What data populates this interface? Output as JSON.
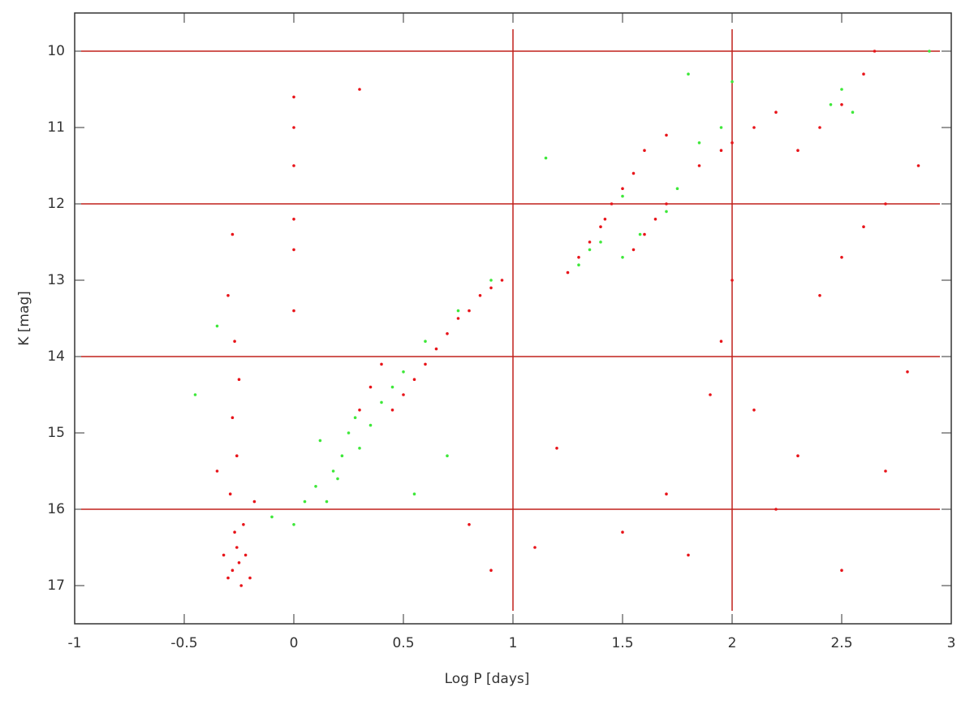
{
  "chart_data": {
    "type": "scatter",
    "x_label": "Log P [days]",
    "y_label": "K [mag]",
    "xlim": [
      -1,
      3
    ],
    "xticks": [
      -1,
      -0.5,
      0,
      0.5,
      1,
      1.5,
      2,
      2.5,
      3
    ],
    "ylim": [
      17.5,
      9.5
    ],
    "yticks": [
      10,
      11,
      12,
      13,
      14,
      15,
      16,
      17
    ],
    "hlines": [
      10,
      12,
      14,
      16
    ],
    "vlines": [
      1,
      2
    ],
    "line_color": "#c0201c",
    "series": [
      {
        "color": "#e8141a",
        "x": [
          -0.25,
          -0.28,
          -0.22,
          -0.3,
          -0.26,
          -0.2,
          -0.24,
          -0.32,
          -0.27,
          -0.23,
          -0.29,
          -0.26,
          -0.28,
          -0.25,
          -0.27,
          -0.3,
          -0.28,
          -0.35,
          -0.18,
          0,
          0,
          0,
          0,
          0,
          0,
          0.3,
          0.3,
          0.35,
          0.4,
          0.45,
          0.5,
          0.55,
          0.6,
          0.65,
          0.7,
          0.75,
          0.8,
          0.85,
          0.9,
          0.95,
          1.25,
          1.3,
          1.35,
          1.4,
          1.42,
          1.45,
          1.5,
          1.55,
          1.6,
          1.7,
          1.55,
          1.6,
          1.65,
          1.7,
          1.85,
          1.95,
          2.0,
          2.1,
          2.2,
          2.3,
          2.4,
          2.5,
          2.6,
          2.65,
          2.7,
          2.6,
          2.5,
          2.4,
          1.2,
          1.5,
          1.8,
          2.2,
          2.5,
          1.1,
          0.9,
          2.7,
          1.9,
          1.7,
          2.1,
          2.3,
          2.8,
          0.8,
          2.85,
          2.0,
          1.95
        ],
        "values": [
          16.7,
          16.8,
          16.6,
          16.9,
          16.5,
          16.9,
          17.0,
          16.6,
          16.3,
          16.2,
          15.8,
          15.3,
          14.8,
          14.3,
          13.8,
          13.2,
          12.4,
          15.5,
          15.9,
          10.6,
          11.0,
          11.5,
          12.2,
          12.6,
          13.4,
          10.5,
          14.7,
          14.4,
          14.1,
          14.7,
          14.5,
          14.3,
          14.1,
          13.9,
          13.7,
          13.5,
          13.4,
          13.2,
          13.1,
          13.0,
          12.9,
          12.7,
          12.5,
          12.3,
          12.2,
          12.0,
          11.8,
          11.6,
          11.3,
          11.1,
          12.6,
          12.4,
          12.2,
          12.0,
          11.5,
          11.3,
          11.2,
          11.0,
          10.8,
          11.3,
          11.0,
          10.7,
          10.3,
          10.0,
          12.0,
          12.3,
          12.7,
          13.2,
          15.2,
          16.3,
          16.6,
          16.0,
          16.8,
          16.5,
          16.8,
          15.5,
          14.5,
          15.8,
          14.7,
          15.3,
          14.2,
          16.2,
          11.5,
          13.0,
          13.8
        ]
      },
      {
        "color": "#3ee83a",
        "x": [
          0.0,
          0.05,
          0.1,
          0.15,
          0.18,
          0.22,
          0.25,
          0.3,
          0.35,
          0.4,
          0.45,
          0.2,
          0.12,
          0.28,
          -0.1,
          0.5,
          0.6,
          0.75,
          0.9,
          1.3,
          1.35,
          1.4,
          1.5,
          1.58,
          1.7,
          1.75,
          1.85,
          1.95,
          2.0,
          2.45,
          2.5,
          2.55,
          1.5,
          0.55,
          0.7,
          -0.45,
          -0.35,
          1.15,
          2.9,
          1.8
        ],
        "values": [
          16.2,
          15.9,
          15.7,
          15.9,
          15.5,
          15.3,
          15.0,
          15.2,
          14.9,
          14.6,
          14.4,
          15.6,
          15.1,
          14.8,
          16.1,
          14.2,
          13.8,
          13.4,
          13.0,
          12.8,
          12.6,
          12.5,
          12.7,
          12.4,
          12.1,
          11.8,
          11.2,
          11.0,
          10.4,
          10.7,
          10.5,
          10.8,
          11.9,
          15.8,
          15.3,
          14.5,
          13.6,
          11.4,
          10.0,
          10.3
        ]
      }
    ]
  }
}
